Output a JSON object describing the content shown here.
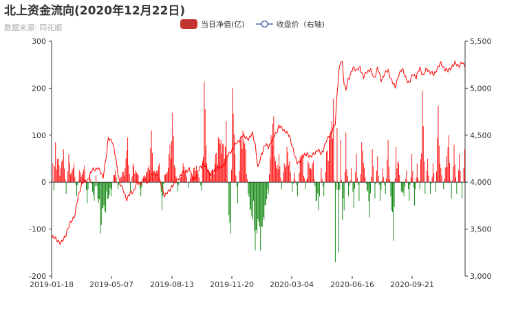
{
  "chart_data": {
    "type": "bar",
    "title": "北上资金流向(2020年12月22日)",
    "subtitle": "数据来源: 同花顺",
    "colors": {
      "positive": "#ff0000",
      "negative": "#008000",
      "line": "#ff0000",
      "legend_bar": "#c23531",
      "axis": "#333333"
    },
    "legend": {
      "position": "top-center",
      "items": [
        {
          "name": "当日净值(亿)",
          "shape": "bar"
        },
        {
          "name": "收盘价（右轴)",
          "shape": "line-circle"
        }
      ]
    },
    "x_tick_labels": [
      "2019-01-18",
      "2019-05-07",
      "2019-08-13",
      "2019-11-20",
      "2020-03-04",
      "2020-06-16",
      "2020-09-21"
    ],
    "y_left": {
      "min": -200,
      "max": 300,
      "ticks": [
        "-200",
        "-100",
        "0",
        "100",
        "200",
        "300"
      ]
    },
    "y_right": {
      "min": 3000,
      "max": 5500,
      "ticks": [
        "3,000",
        "3,500",
        "4,000",
        "4,500",
        "5,000",
        "5,500"
      ]
    },
    "trading_days": 470,
    "series": [
      {
        "name": "当日净值(亿)",
        "type": "bar",
        "axis": "left",
        "keypoints": [
          [
            1,
            40
          ],
          [
            2,
            -18
          ],
          [
            4,
            85
          ],
          [
            7,
            50
          ],
          [
            10,
            30
          ],
          [
            13,
            70
          ],
          [
            16,
            -25
          ],
          [
            19,
            60
          ],
          [
            22,
            20
          ],
          [
            25,
            40
          ],
          [
            28,
            -30
          ],
          [
            31,
            25
          ],
          [
            34,
            15
          ],
          [
            37,
            35
          ],
          [
            40,
            -45
          ],
          [
            43,
            20
          ],
          [
            46,
            -20
          ],
          [
            48,
            -40
          ],
          [
            50,
            15
          ],
          [
            52,
            -35
          ],
          [
            55,
            -110
          ],
          [
            58,
            -55
          ],
          [
            61,
            -65
          ],
          [
            64,
            -35
          ],
          [
            67,
            -30
          ],
          [
            70,
            15
          ],
          [
            72,
            25
          ],
          [
            75,
            -15
          ],
          [
            78,
            10
          ],
          [
            80,
            22
          ],
          [
            83,
            30
          ],
          [
            86,
            95
          ],
          [
            89,
            -20
          ],
          [
            92,
            40
          ],
          [
            95,
            25
          ],
          [
            98,
            15
          ],
          [
            101,
            -30
          ],
          [
            104,
            12
          ],
          [
            107,
            20
          ],
          [
            110,
            35
          ],
          [
            113,
            110
          ],
          [
            116,
            20
          ],
          [
            119,
            25
          ],
          [
            122,
            40
          ],
          [
            125,
            -60
          ],
          [
            128,
            15
          ],
          [
            131,
            22
          ],
          [
            134,
            80
          ],
          [
            137,
            148
          ],
          [
            140,
            30
          ],
          [
            143,
            -20
          ],
          [
            146,
            10
          ],
          [
            149,
            40
          ],
          [
            152,
            25
          ],
          [
            155,
            -12
          ],
          [
            158,
            18
          ],
          [
            161,
            30
          ],
          [
            164,
            35
          ],
          [
            167,
            10
          ],
          [
            170,
            -18
          ],
          [
            173,
            213
          ],
          [
            176,
            40
          ],
          [
            179,
            20
          ],
          [
            182,
            25
          ],
          [
            186,
            60
          ],
          [
            189,
            95
          ],
          [
            192,
            90
          ],
          [
            195,
            80
          ],
          [
            198,
            130
          ],
          [
            201,
            -70
          ],
          [
            203,
            -110
          ],
          [
            205,
            200
          ],
          [
            208,
            60
          ],
          [
            211,
            -45
          ],
          [
            214,
            90
          ],
          [
            217,
            110
          ],
          [
            220,
            70
          ],
          [
            223,
            -25
          ],
          [
            225,
            -60
          ],
          [
            228,
            -80
          ],
          [
            231,
            -145
          ],
          [
            233,
            -110
          ],
          [
            235,
            -85
          ],
          [
            237,
            -145
          ],
          [
            239,
            -95
          ],
          [
            241,
            -80
          ],
          [
            243,
            -50
          ],
          [
            246,
            -25
          ],
          [
            249,
            100
          ],
          [
            252,
            140
          ],
          [
            255,
            30
          ],
          [
            258,
            60
          ],
          [
            261,
            -15
          ],
          [
            264,
            40
          ],
          [
            267,
            75
          ],
          [
            270,
            45
          ],
          [
            273,
            -20
          ],
          [
            276,
            20
          ],
          [
            279,
            -30
          ],
          [
            282,
            55
          ],
          [
            285,
            60
          ],
          [
            288,
            -15
          ],
          [
            291,
            45
          ],
          [
            294,
            30
          ],
          [
            297,
            45
          ],
          [
            300,
            -40
          ],
          [
            303,
            -60
          ],
          [
            306,
            30
          ],
          [
            309,
            -30
          ],
          [
            312,
            65
          ],
          [
            315,
            90
          ],
          [
            318,
            130
          ],
          [
            320,
            178
          ],
          [
            322,
            -170
          ],
          [
            324,
            115
          ],
          [
            326,
            -150
          ],
          [
            328,
            90
          ],
          [
            330,
            -80
          ],
          [
            332,
            -60
          ],
          [
            334,
            105
          ],
          [
            337,
            -30
          ],
          [
            340,
            30
          ],
          [
            343,
            -55
          ],
          [
            346,
            60
          ],
          [
            349,
            -40
          ],
          [
            352,
            85
          ],
          [
            355,
            30
          ],
          [
            358,
            -20
          ],
          [
            361,
            -75
          ],
          [
            364,
            70
          ],
          [
            367,
            -35
          ],
          [
            370,
            55
          ],
          [
            373,
            -40
          ],
          [
            376,
            30
          ],
          [
            379,
            -25
          ],
          [
            382,
            90
          ],
          [
            385,
            -30
          ],
          [
            388,
            -125
          ],
          [
            391,
            75
          ],
          [
            394,
            40
          ],
          [
            397,
            -20
          ],
          [
            400,
            -30
          ],
          [
            403,
            25
          ],
          [
            406,
            -40
          ],
          [
            409,
            60
          ],
          [
            412,
            -50
          ],
          [
            415,
            40
          ],
          [
            418,
            -15
          ],
          [
            421,
            195
          ],
          [
            424,
            -25
          ],
          [
            427,
            50
          ],
          [
            430,
            -25
          ],
          [
            433,
            40
          ],
          [
            436,
            -20
          ],
          [
            439,
            162
          ],
          [
            442,
            30
          ],
          [
            445,
            -15
          ],
          [
            448,
            55
          ],
          [
            451,
            100
          ],
          [
            454,
            -35
          ],
          [
            457,
            80
          ],
          [
            460,
            -25
          ],
          [
            463,
            60
          ],
          [
            466,
            -35
          ],
          [
            469,
            70
          ]
        ]
      },
      {
        "name": "收盘价（右轴)",
        "type": "line",
        "axis": "right",
        "keypoints": [
          [
            0,
            3410
          ],
          [
            6,
            3390
          ],
          [
            10,
            3340
          ],
          [
            16,
            3450
          ],
          [
            22,
            3590
          ],
          [
            26,
            3650
          ],
          [
            30,
            3860
          ],
          [
            34,
            3990
          ],
          [
            40,
            4020
          ],
          [
            46,
            4130
          ],
          [
            52,
            4150
          ],
          [
            58,
            4060
          ],
          [
            62,
            4290
          ],
          [
            64,
            4470
          ],
          [
            68,
            4450
          ],
          [
            71,
            4320
          ],
          [
            74,
            4160
          ],
          [
            77,
            3990
          ],
          [
            81,
            3910
          ],
          [
            85,
            3820
          ],
          [
            89,
            3880
          ],
          [
            93,
            3910
          ],
          [
            96,
            3980
          ],
          [
            100,
            3990
          ],
          [
            104,
            4020
          ],
          [
            109,
            4000
          ],
          [
            113,
            4070
          ],
          [
            117,
            4110
          ],
          [
            120,
            4060
          ],
          [
            124,
            3970
          ],
          [
            128,
            3860
          ],
          [
            132,
            3890
          ],
          [
            136,
            3960
          ],
          [
            140,
            3990
          ],
          [
            144,
            4050
          ],
          [
            148,
            4090
          ],
          [
            152,
            4120
          ],
          [
            156,
            4140
          ],
          [
            160,
            4040
          ],
          [
            164,
            4050
          ],
          [
            168,
            4160
          ],
          [
            172,
            4190
          ],
          [
            176,
            4140
          ],
          [
            180,
            4090
          ],
          [
            184,
            4110
          ],
          [
            188,
            4160
          ],
          [
            192,
            4150
          ],
          [
            196,
            4200
          ],
          [
            200,
            4280
          ],
          [
            204,
            4340
          ],
          [
            208,
            4390
          ],
          [
            212,
            4440
          ],
          [
            216,
            4490
          ],
          [
            220,
            4480
          ],
          [
            224,
            4460
          ],
          [
            228,
            4520
          ],
          [
            231,
            4400
          ],
          [
            234,
            4140
          ],
          [
            238,
            4300
          ],
          [
            242,
            4390
          ],
          [
            246,
            4380
          ],
          [
            250,
            4440
          ],
          [
            254,
            4510
          ],
          [
            258,
            4600
          ],
          [
            262,
            4560
          ],
          [
            266,
            4540
          ],
          [
            270,
            4480
          ],
          [
            274,
            4360
          ],
          [
            278,
            4200
          ],
          [
            282,
            4230
          ],
          [
            286,
            4270
          ],
          [
            290,
            4310
          ],
          [
            294,
            4260
          ],
          [
            298,
            4310
          ],
          [
            302,
            4340
          ],
          [
            306,
            4300
          ],
          [
            310,
            4390
          ],
          [
            314,
            4480
          ],
          [
            318,
            4540
          ],
          [
            322,
            4620
          ],
          [
            324,
            4950
          ],
          [
            326,
            5180
          ],
          [
            328,
            5280
          ],
          [
            330,
            5260
          ],
          [
            332,
            5050
          ],
          [
            334,
            4990
          ],
          [
            336,
            5080
          ],
          [
            338,
            5100
          ],
          [
            342,
            5230
          ],
          [
            346,
            5180
          ],
          [
            350,
            5230
          ],
          [
            354,
            5110
          ],
          [
            358,
            5180
          ],
          [
            362,
            5200
          ],
          [
            366,
            5100
          ],
          [
            370,
            5220
          ],
          [
            374,
            5080
          ],
          [
            378,
            5160
          ],
          [
            382,
            5180
          ],
          [
            386,
            5090
          ],
          [
            390,
            5000
          ],
          [
            394,
            5150
          ],
          [
            398,
            5200
          ],
          [
            402,
            5120
          ],
          [
            406,
            5040
          ],
          [
            410,
            5160
          ],
          [
            414,
            5110
          ],
          [
            418,
            5220
          ],
          [
            422,
            5130
          ],
          [
            426,
            5210
          ],
          [
            430,
            5170
          ],
          [
            434,
            5140
          ],
          [
            438,
            5220
          ],
          [
            442,
            5260
          ],
          [
            446,
            5210
          ],
          [
            450,
            5180
          ],
          [
            454,
            5230
          ],
          [
            458,
            5260
          ],
          [
            462,
            5240
          ],
          [
            466,
            5270
          ],
          [
            469,
            5230
          ]
        ]
      }
    ]
  }
}
